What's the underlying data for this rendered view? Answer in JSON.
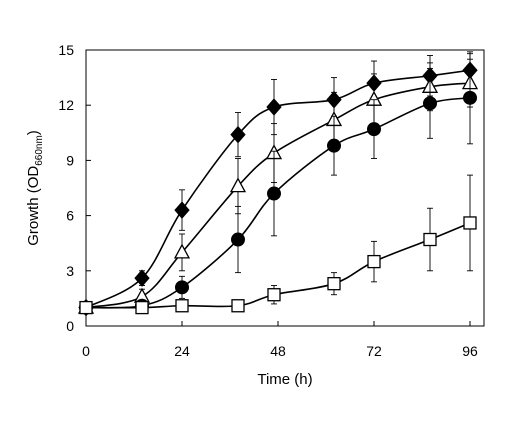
{
  "chart_data": {
    "type": "line",
    "xlabel": "Time (h)",
    "ylabel": {
      "prefix": "Growth (OD",
      "subscript": "660nm",
      "suffix": ")"
    },
    "xlim": [
      0,
      100
    ],
    "ylim": [
      0,
      15
    ],
    "xticks": [
      0,
      24,
      48,
      72,
      96
    ],
    "yticks": [
      0,
      3,
      6,
      9,
      12,
      15
    ],
    "grid": false,
    "series": [
      {
        "marker": "diamond-filled",
        "x": [
          0,
          14,
          24,
          38,
          47,
          62,
          72,
          86,
          96
        ],
        "y": [
          1.0,
          2.6,
          6.3,
          10.4,
          11.9,
          12.3,
          13.2,
          13.6,
          13.9
        ],
        "err": [
          0.2,
          0.4,
          1.1,
          1.2,
          1.5,
          1.2,
          1.2,
          1.1,
          0.9
        ]
      },
      {
        "marker": "triangle-open",
        "x": [
          0,
          14,
          24,
          38,
          47,
          62,
          72,
          86,
          96
        ],
        "y": [
          1.0,
          1.6,
          4.0,
          7.6,
          9.4,
          11.2,
          12.3,
          13.0,
          13.2
        ],
        "err": [
          0.2,
          0.4,
          1.0,
          1.5,
          1.6,
          1.5,
          1.4,
          1.3,
          1.3
        ]
      },
      {
        "marker": "circle-filled",
        "x": [
          0,
          14,
          24,
          38,
          47,
          62,
          72,
          86,
          96
        ],
        "y": [
          1.0,
          1.1,
          2.1,
          4.7,
          7.2,
          9.8,
          10.7,
          12.1,
          12.4
        ],
        "err": [
          0.2,
          0.3,
          0.6,
          1.8,
          2.3,
          1.6,
          1.6,
          1.9,
          2.5
        ]
      },
      {
        "marker": "square-open",
        "x": [
          0,
          14,
          24,
          38,
          47,
          62,
          72,
          86,
          96
        ],
        "y": [
          1.0,
          1.0,
          1.1,
          1.1,
          1.7,
          2.3,
          3.5,
          4.7,
          5.6
        ],
        "err": [
          0.2,
          0.2,
          0.2,
          0.2,
          0.5,
          0.6,
          1.1,
          1.7,
          2.6
        ]
      }
    ]
  }
}
